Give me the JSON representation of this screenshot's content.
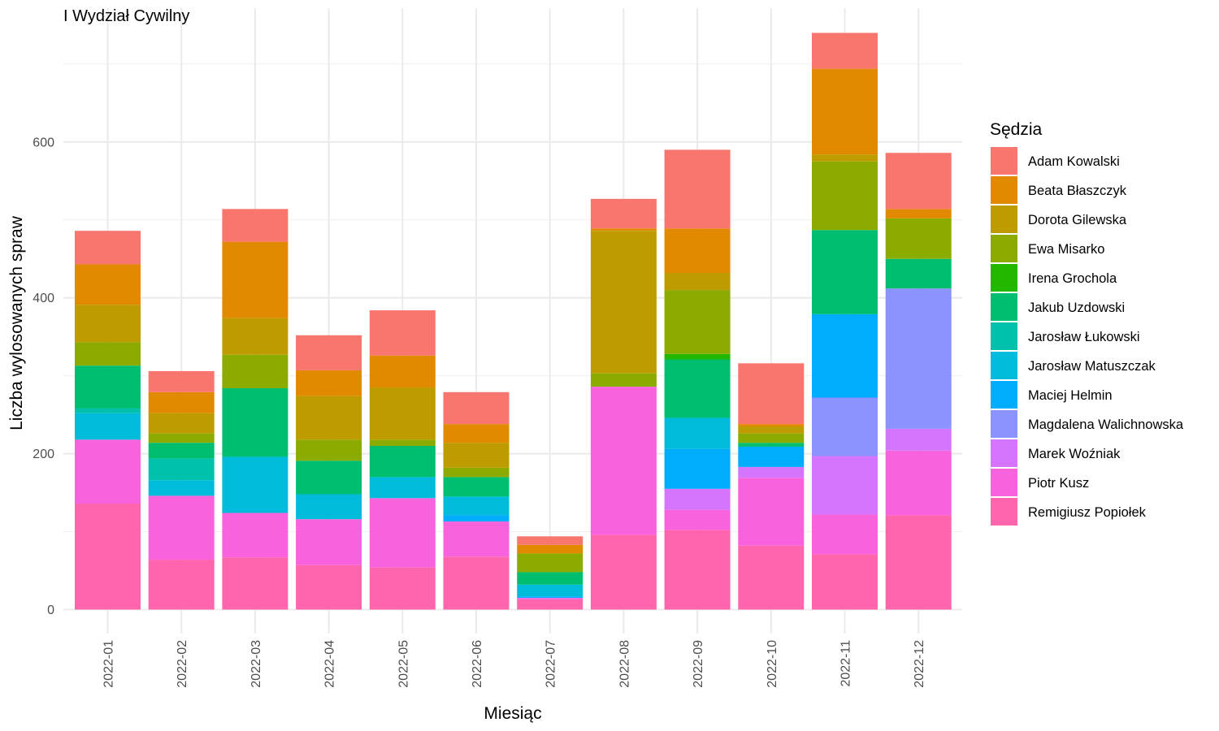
{
  "chart_data": {
    "type": "bar",
    "stacked": true,
    "title": "I Wydział Cywilny",
    "xlabel": "Miesiąc",
    "ylabel": "Liczba wylosowanych spraw",
    "ylim": [
      0,
      770
    ],
    "yticks": [
      0,
      200,
      400,
      600
    ],
    "grid": true,
    "legend_position": "right",
    "legend_title": "Sędzia",
    "categories": [
      "2022-01",
      "2022-02",
      "2022-03",
      "2022-04",
      "2022-05",
      "2022-06",
      "2022-07",
      "2022-08",
      "2022-09",
      "2022-10",
      "2022-11",
      "2022-12"
    ],
    "series": [
      {
        "name": "Adam Kowalski",
        "color": "#F8766D",
        "values": [
          43,
          27,
          42,
          45,
          58,
          41,
          11,
          38,
          101,
          78,
          46,
          72
        ]
      },
      {
        "name": "Beata Błaszczyk",
        "color": "#E18A00",
        "values": [
          52,
          27,
          98,
          33,
          41,
          24,
          11,
          3,
          57,
          3,
          110,
          12
        ]
      },
      {
        "name": "Dorota Gilewska",
        "color": "#BE9C00",
        "values": [
          48,
          26,
          47,
          56,
          67,
          32,
          0,
          183,
          22,
          9,
          9,
          0
        ]
      },
      {
        "name": "Ewa Misarko",
        "color": "#8CAB00",
        "values": [
          30,
          12,
          43,
          27,
          8,
          12,
          24,
          17,
          82,
          12,
          88,
          52
        ]
      },
      {
        "name": "Irena Grochola",
        "color": "#24B700",
        "values": [
          0,
          0,
          0,
          0,
          0,
          0,
          0,
          0,
          7,
          0,
          0,
          0
        ]
      },
      {
        "name": "Jakub Uzdowski",
        "color": "#00BE70",
        "values": [
          55,
          20,
          88,
          43,
          40,
          25,
          16,
          0,
          75,
          5,
          108,
          38
        ]
      },
      {
        "name": "Jarosław Łukowski",
        "color": "#00C1AB",
        "values": [
          6,
          28,
          0,
          0,
          0,
          0,
          0,
          0,
          0,
          0,
          0,
          0
        ]
      },
      {
        "name": "Jarosław Matuszczak",
        "color": "#00BBDA",
        "values": [
          34,
          20,
          72,
          32,
          27,
          24,
          15,
          0,
          40,
          0,
          0,
          0
        ]
      },
      {
        "name": "Maciej Helmin",
        "color": "#00ACFC",
        "values": [
          0,
          0,
          0,
          0,
          0,
          8,
          2,
          0,
          51,
          26,
          107,
          0
        ]
      },
      {
        "name": "Magdalena Walichnowska",
        "color": "#8B93FF",
        "values": [
          0,
          0,
          0,
          0,
          0,
          0,
          0,
          0,
          0,
          0,
          75,
          180
        ]
      },
      {
        "name": "Marek Woźniak",
        "color": "#D575FE",
        "values": [
          0,
          0,
          0,
          0,
          0,
          0,
          0,
          0,
          27,
          14,
          75,
          28
        ]
      },
      {
        "name": "Piotr Kusz",
        "color": "#F962DD",
        "values": [
          82,
          82,
          57,
          59,
          89,
          45,
          2,
          190,
          26,
          87,
          51,
          83
        ]
      },
      {
        "name": "Remigiusz Popiołek",
        "color": "#FF65AC",
        "values": [
          136,
          64,
          67,
          57,
          54,
          68,
          13,
          96,
          102,
          82,
          71,
          121
        ]
      }
    ]
  }
}
